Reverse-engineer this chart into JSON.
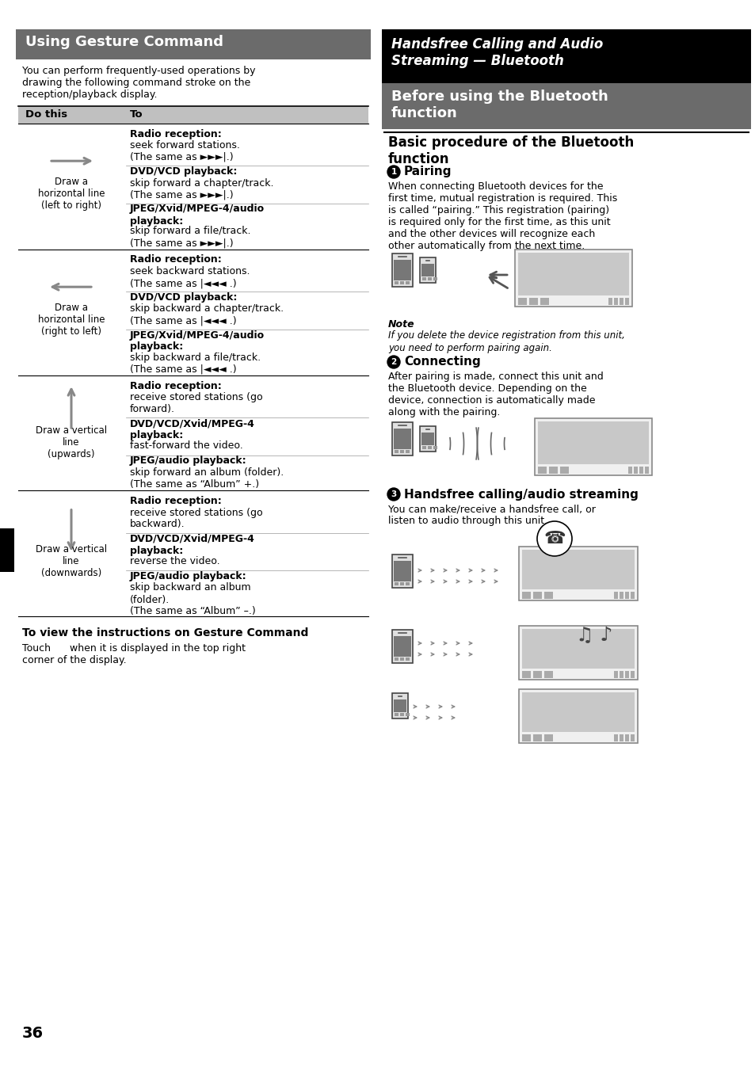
{
  "page_bg": "#ffffff",
  "left": {
    "title": "Using Gesture Command",
    "title_bg": "#6b6b6b",
    "title_color": "#ffffff",
    "intro": "You can perform frequently-used operations by\ndrawing the following command stroke on the\nreception/playback display.",
    "header_bg": "#c0c0c0",
    "rows": [
      {
        "gesture": "right",
        "label": "Draw a\nhorizontal line\n(left to right)",
        "items": [
          {
            "b": "Radio reception:",
            "t": "seek forward stations.\n(The same as ►►►|.)"
          },
          {
            "b": "DVD/VCD playback:",
            "t": "skip forward a chapter/track.\n(The same as ►►►|.)"
          },
          {
            "b": "JPEG/Xvid/MPEG-4/audio\nplayback:",
            "t": "skip forward a file/track.\n(The same as ►►►|.)"
          }
        ]
      },
      {
        "gesture": "left",
        "label": "Draw a\nhorizontal line\n(right to left)",
        "items": [
          {
            "b": "Radio reception:",
            "t": "seek backward stations.\n(The same as |◄◄◄ .)"
          },
          {
            "b": "DVD/VCD playback:",
            "t": "skip backward a chapter/track.\n(The same as |◄◄◄ .)"
          },
          {
            "b": "JPEG/Xvid/MPEG-4/audio\nplayback:",
            "t": "skip backward a file/track.\n(The same as |◄◄◄ .)"
          }
        ]
      },
      {
        "gesture": "up",
        "label": "Draw a vertical\nline\n(upwards)",
        "items": [
          {
            "b": "Radio reception:",
            "t": "receive stored stations (go\nforward)."
          },
          {
            "b": "DVD/VCD/Xvid/MPEG-4\nplayback:",
            "t": "fast-forward the video."
          },
          {
            "b": "JPEG/audio playback:",
            "t": "skip forward an album (folder).\n(The same as “Album” +.)"
          }
        ]
      },
      {
        "gesture": "down",
        "label": "Draw a vertical\nline\n(downwards)",
        "items": [
          {
            "b": "Radio reception:",
            "t": "receive stored stations (go\nbackward)."
          },
          {
            "b": "DVD/VCD/Xvid/MPEG-4\nplayback:",
            "t": "reverse the video."
          },
          {
            "b": "JPEG/audio playback:",
            "t": "skip backward an album\n(folder).\n(The same as “Album” –.)"
          }
        ]
      }
    ],
    "footer_bold": "To view the instructions on Gesture Command",
    "footer_text": "Touch      when it is displayed in the top right\ncorner of the display.",
    "page_num": "36"
  },
  "right": {
    "header_title": "Handsfree Calling and Audio\nStreaming — Bluetooth",
    "header_bg": "#000000",
    "header_color": "#ffffff",
    "section_title": "Before using the Bluetooth\nfunction",
    "section_bg": "#6b6b6b",
    "section_color": "#ffffff",
    "sub_title": "Basic procedure of the Bluetooth\nfunction",
    "pairing_title": "Pairing",
    "pairing_text": "When connecting Bluetooth devices for the\nfirst time, mutual registration is required. This\nis called “pairing.” This registration (pairing)\nis required only for the first time, as this unit\nand the other devices will recognize each\nother automatically from the next time.",
    "note_title": "Note",
    "note_text": "If you delete the device registration from this unit,\nyou need to perform pairing again.",
    "connect_title": "Connecting",
    "connect_text": "After pairing is made, connect this unit and\nthe Bluetooth device. Depending on the\ndevice, connection is automatically made\nalong with the pairing.",
    "stream_title": "Handsfree calling/audio streaming",
    "stream_text": "You can make/receive a handsfree call, or\nlisten to audio through this unit."
  }
}
